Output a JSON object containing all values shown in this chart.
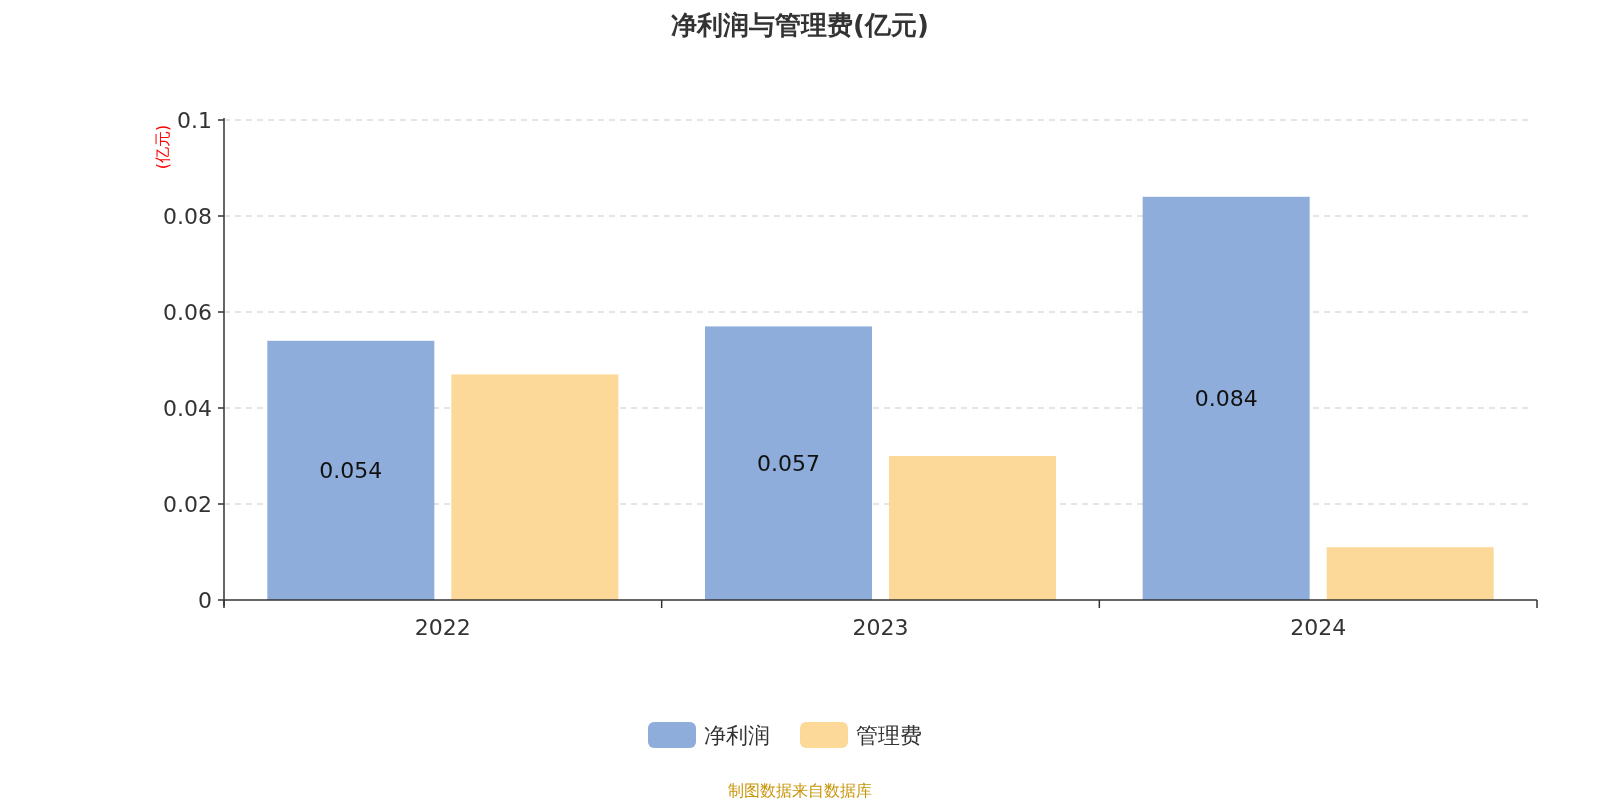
{
  "chart_data": {
    "type": "bar",
    "title": "净利润与管理费(亿元)",
    "ylabel": "(亿元)",
    "categories": [
      "2022",
      "2023",
      "2024"
    ],
    "series": [
      {
        "name": "净利润",
        "color": "#8eaddb",
        "values": [
          0.054,
          0.057,
          0.084
        ],
        "value_labels": [
          "0.054",
          "0.057",
          "0.084"
        ]
      },
      {
        "name": "管理费",
        "color": "#fdd999",
        "values": [
          0.047,
          0.03,
          0.011
        ]
      }
    ],
    "ylim": [
      0,
      0.1
    ],
    "yticks": [
      0,
      0.02,
      0.04,
      0.06,
      0.08,
      0.1
    ],
    "grid": "y",
    "legend": "bottom",
    "annotations": [
      "制图数据来自数据库"
    ]
  }
}
